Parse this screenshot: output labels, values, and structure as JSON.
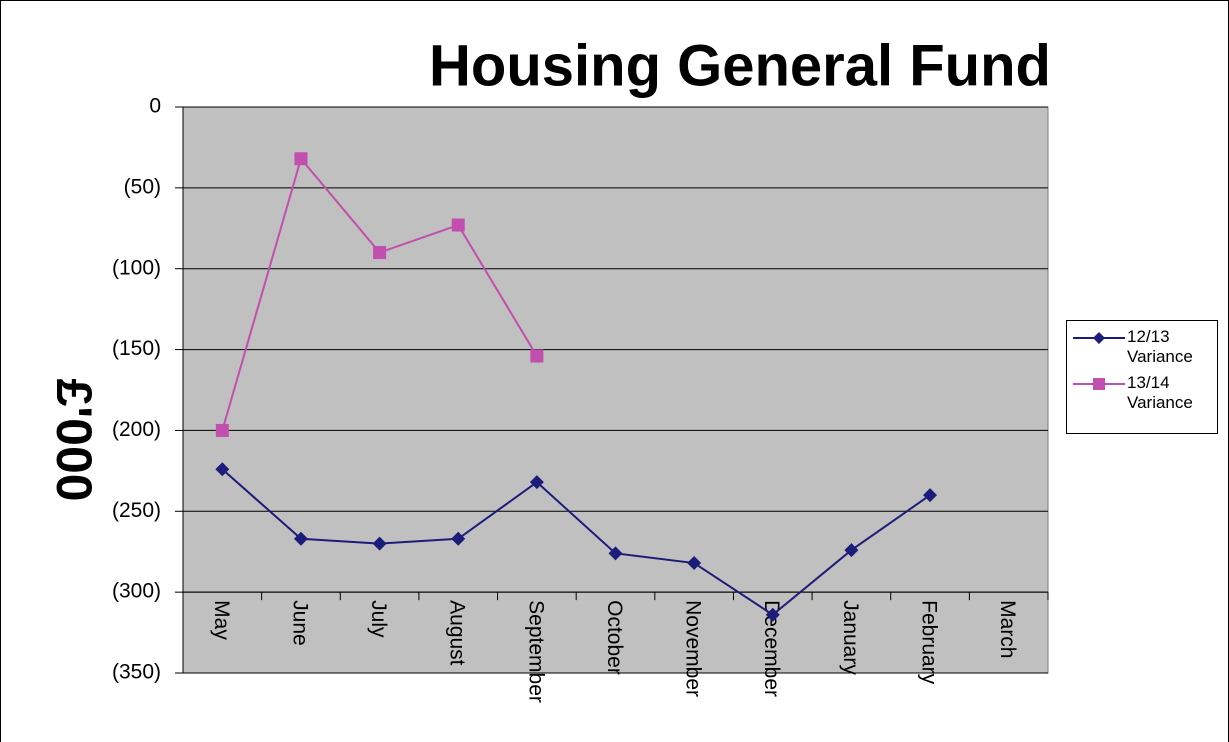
{
  "chart_data": {
    "type": "line",
    "title": "Housing General Fund",
    "y_label": "£'000",
    "categories": [
      "May",
      "June",
      "July",
      "August",
      "September",
      "October",
      "November",
      "December",
      "January",
      "February",
      "March"
    ],
    "series": [
      {
        "name": "12/13 Variance",
        "color": "#1c1c7a",
        "marker": "diamond",
        "values": [
          -224,
          -267,
          -270,
          -267,
          -232,
          -276,
          -282,
          -314,
          -274,
          -240,
          null
        ]
      },
      {
        "name": "13/14 Variance",
        "color": "#c24fad",
        "marker": "square",
        "values": [
          -200,
          -32,
          -90,
          -73,
          -154,
          null,
          null,
          null,
          null,
          null,
          null
        ]
      }
    ],
    "ylim": [
      -350,
      0
    ],
    "yticks": [
      {
        "value": -350,
        "label": "(350)"
      },
      {
        "value": -300,
        "label": "(300)"
      },
      {
        "value": -250,
        "label": "(250)"
      },
      {
        "value": -200,
        "label": "(200)"
      },
      {
        "value": -150,
        "label": "(150)"
      },
      {
        "value": -100,
        "label": "(100)"
      },
      {
        "value": -50,
        "label": "(50)"
      },
      0
    ],
    "x_axis_crosses": -300,
    "grid": true,
    "plot_background": "#c0c0c0",
    "legend": "right"
  }
}
